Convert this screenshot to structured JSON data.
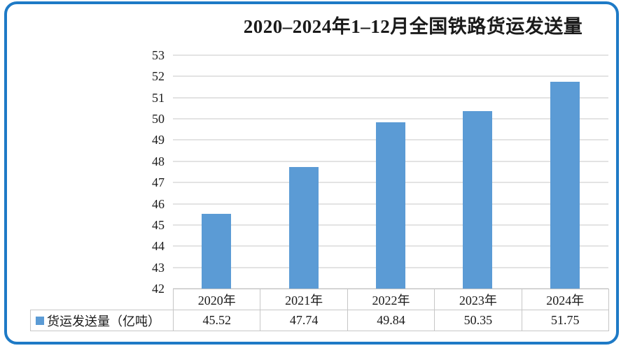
{
  "frame": {
    "border_color": "#1e7ac6"
  },
  "chart_data": {
    "type": "bar",
    "title": "2020–2024年1–12月全国铁路货运发送量",
    "categories": [
      "2020年",
      "2021年",
      "2022年",
      "2023年",
      "2024年"
    ],
    "series": [
      {
        "name": "货运发送量（亿吨）",
        "values": [
          45.52,
          47.74,
          49.84,
          50.35,
          51.75
        ]
      }
    ],
    "value_labels": [
      "45.52",
      "47.74",
      "49.84",
      "50.35",
      "51.75"
    ],
    "xlabel": "",
    "ylabel": "",
    "ylim": [
      42,
      53
    ],
    "yticks": [
      53,
      52,
      51,
      50,
      49,
      48,
      47,
      46,
      45,
      44,
      43,
      42
    ],
    "grid": true,
    "legend_position": "table-left",
    "bar_color": "#5b9bd5",
    "gridline_color": "#e3e3e3",
    "table_border_color": "#c6c6c6"
  }
}
